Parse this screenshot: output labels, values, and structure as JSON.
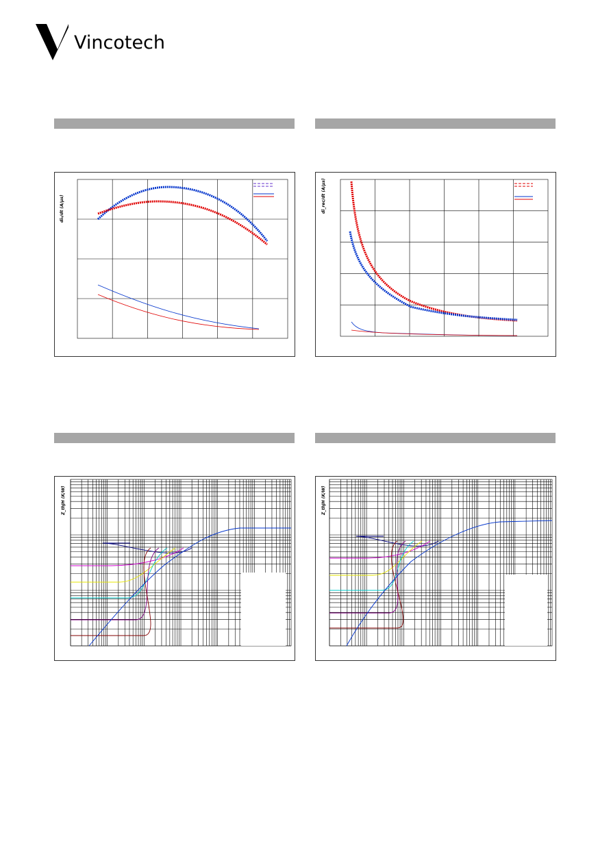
{
  "header": {
    "brand": "Vincotech"
  },
  "panels": [
    {
      "y_label": "di₀/dt (A/μs)"
    },
    {
      "y_label": "di_rec/dt (A/μs)"
    },
    {
      "y_label": "Z_thJH (K/W)"
    },
    {
      "y_label": "Z_thJH (K/W)"
    }
  ]
}
